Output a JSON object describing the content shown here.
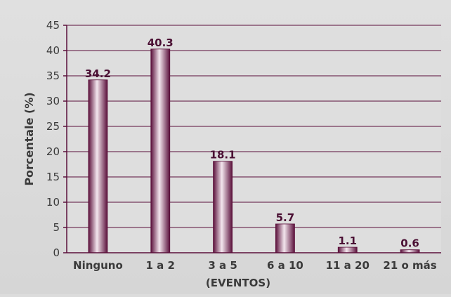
{
  "chart_data": {
    "type": "bar",
    "title": "",
    "categories": [
      "Ninguno",
      "1 a 2",
      "3 a 5",
      "6 a 10",
      "11 a 20",
      "21 o más"
    ],
    "values": [
      34.2,
      40.3,
      18.1,
      5.7,
      1.1,
      0.6
    ],
    "value_labels": [
      "34.2",
      "40.3",
      "18.1",
      "5.7",
      "1.1",
      "0.6"
    ],
    "xlabel": "(EVENTOS)",
    "ylabel": "Porcentale (%)",
    "ylim": [
      0,
      45
    ],
    "yticks": [
      0,
      5,
      10,
      15,
      20,
      25,
      30,
      35,
      40,
      45
    ],
    "grid": "horizontal",
    "colors": {
      "bar_dark": "#5a0f3a",
      "bar_mid": "#9b4a78",
      "bar_light": "#f3e6ee",
      "axis": "#5a0f3a",
      "grid": "#5a0f3a",
      "label": "#4a0f33",
      "tick_text": "#3a3a3a",
      "plot_bg": "#dedede"
    }
  }
}
